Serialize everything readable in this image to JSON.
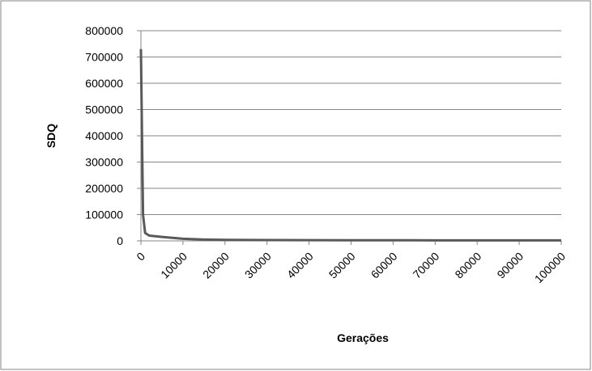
{
  "chart_data": {
    "type": "line",
    "xlabel": "Gerações",
    "ylabel": "SDQ",
    "x": [
      0,
      500,
      1000,
      2000,
      5000,
      10000,
      15000,
      20000,
      30000,
      50000,
      70000,
      100000
    ],
    "series": [
      {
        "name": "SDQ",
        "color": "#595959",
        "values": [
          730000,
          100000,
          30000,
          20000,
          15000,
          8000,
          5000,
          4000,
          3000,
          2500,
          2000,
          2000
        ]
      }
    ],
    "xlim": [
      0,
      100000
    ],
    "xticks": [
      0,
      10000,
      20000,
      30000,
      40000,
      50000,
      60000,
      70000,
      80000,
      90000,
      100000
    ],
    "ylim": [
      0,
      800000
    ],
    "yticks": [
      0,
      100000,
      200000,
      300000,
      400000,
      500000,
      600000,
      700000,
      800000
    ],
    "grid": true
  }
}
